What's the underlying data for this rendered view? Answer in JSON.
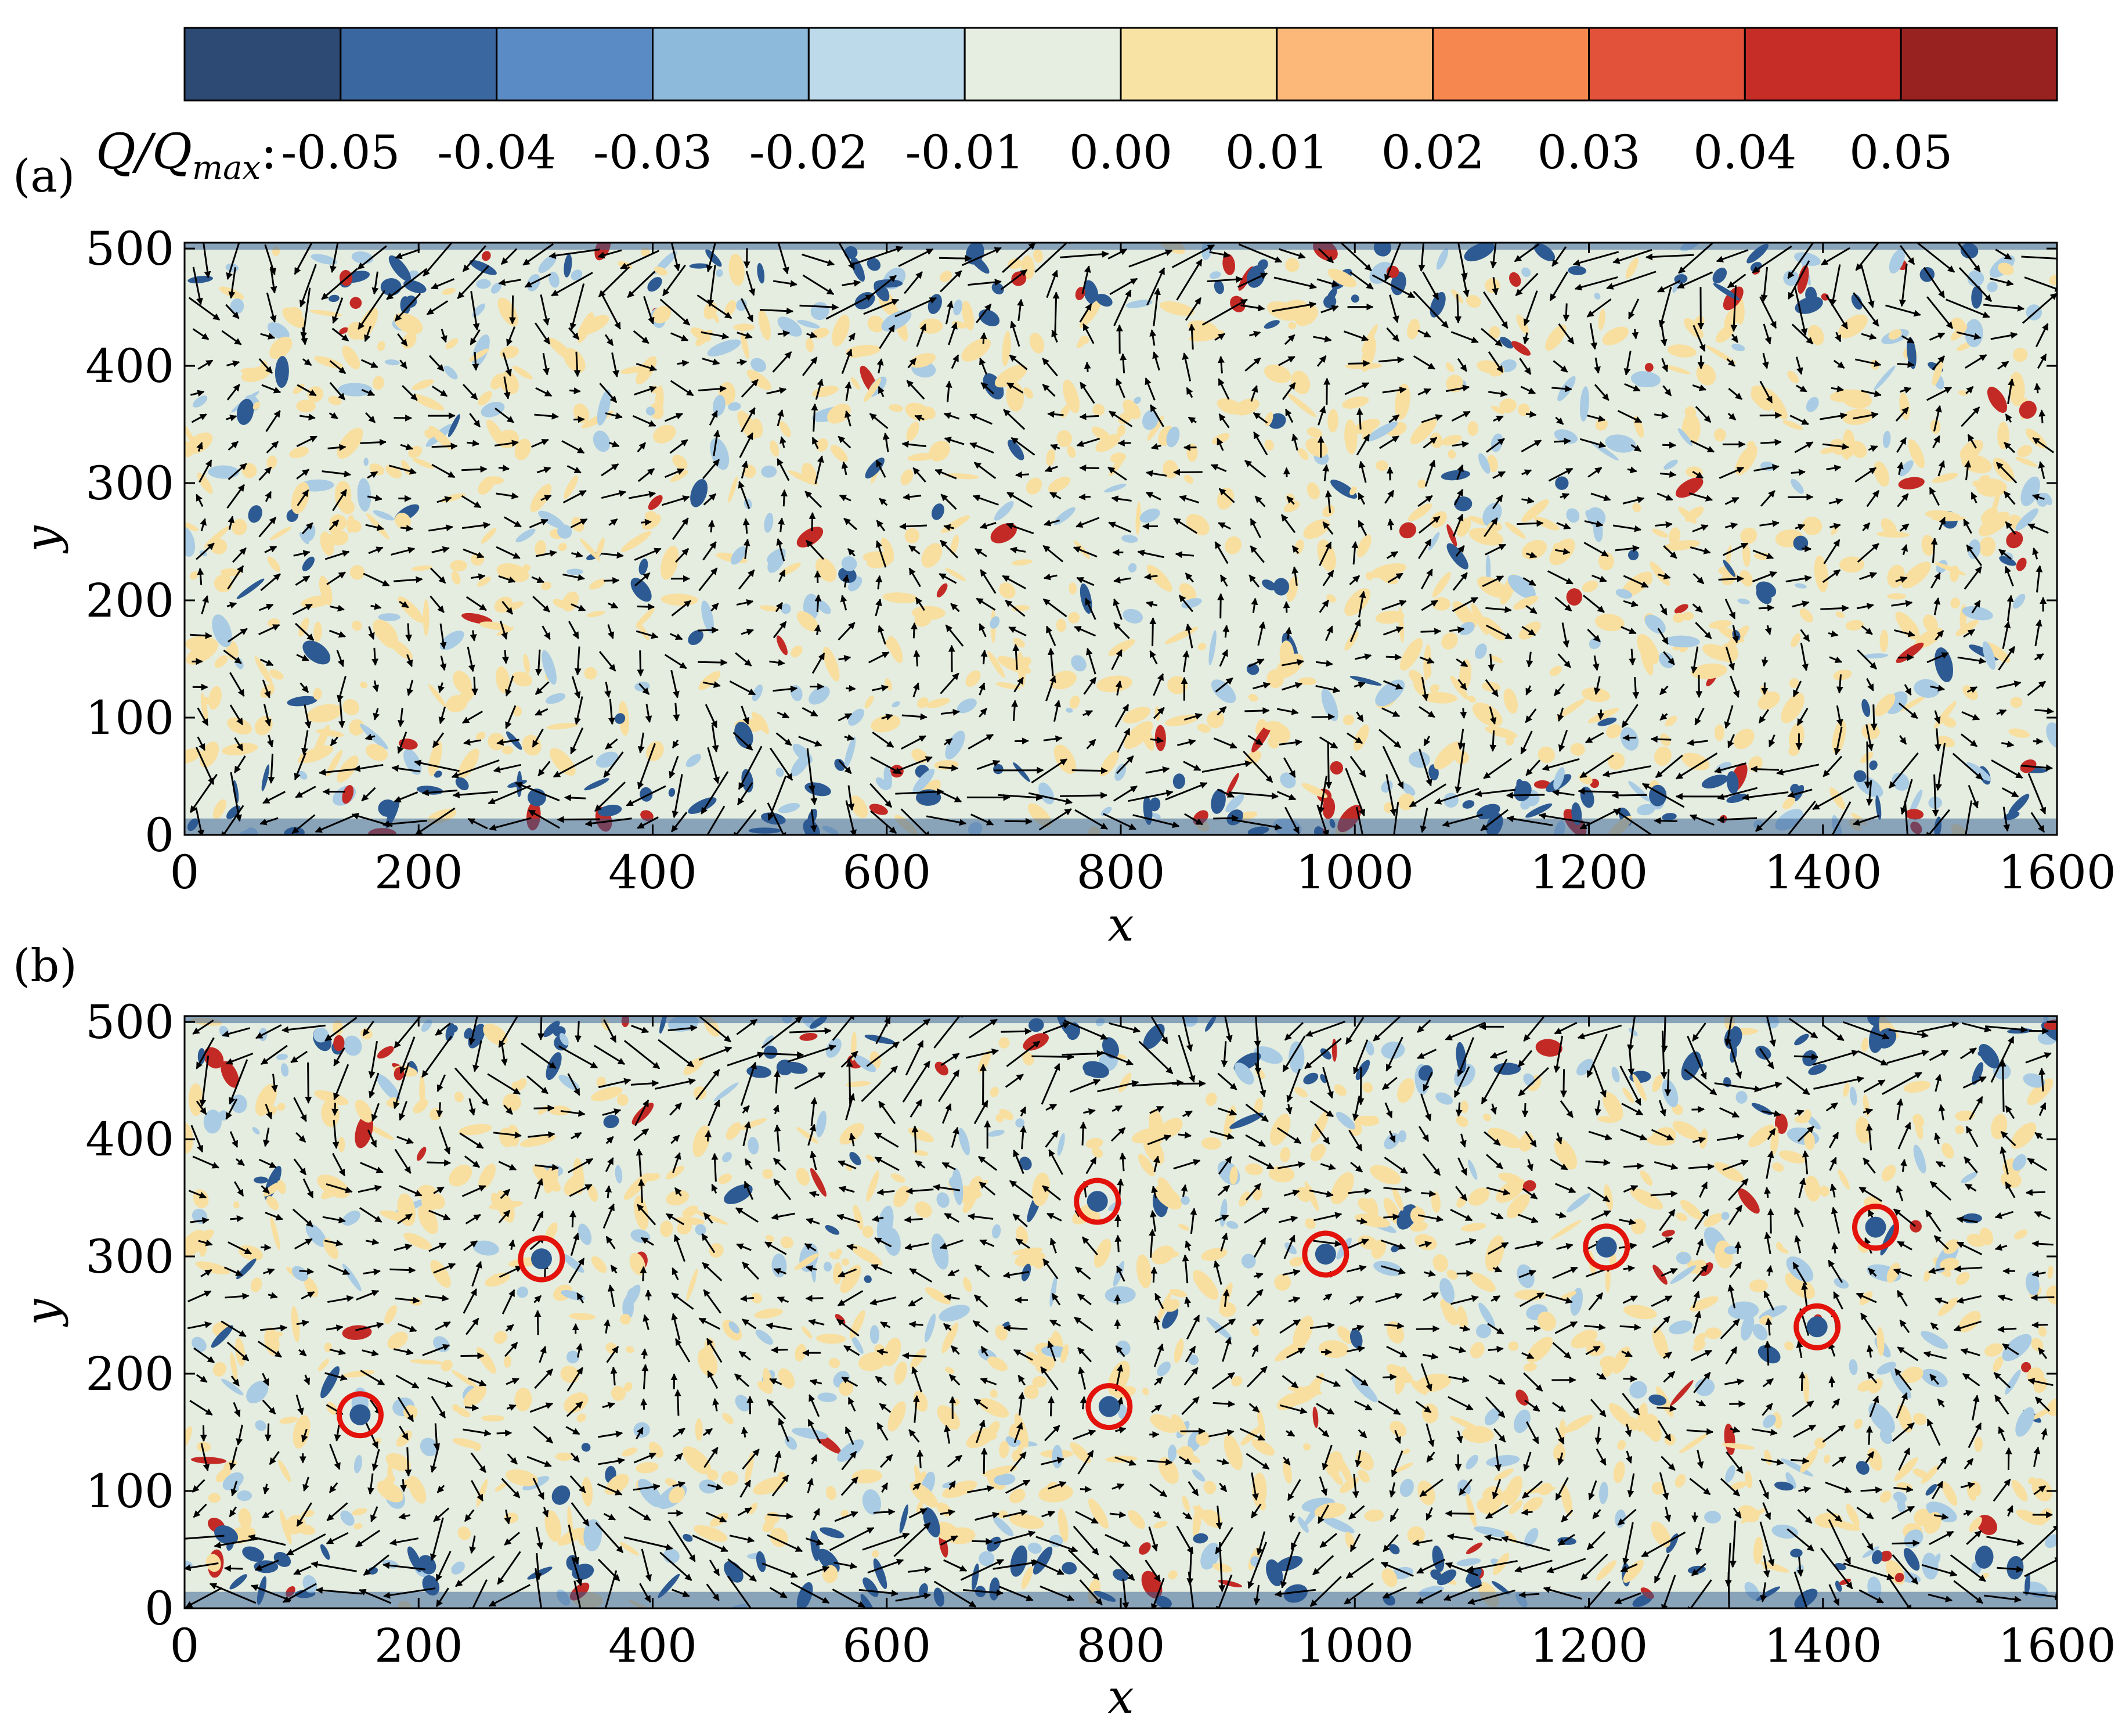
{
  "colorbar": {
    "label_main": "Q/Q",
    "label_sub": "max",
    "label_suffix": ":",
    "ticks": [
      "-0.05",
      "-0.04",
      "-0.03",
      "-0.02",
      "-0.01",
      "0.00",
      "0.01",
      "0.02",
      "0.03",
      "0.04",
      "0.05"
    ],
    "colors": [
      "#2c4a74",
      "#3b67a1",
      "#5b8bc4",
      "#8db9db",
      "#bcdaea",
      "#e6eee2",
      "#f8e2a4",
      "#fcb879",
      "#f6874f",
      "#e2513a",
      "#c52d26",
      "#98221f"
    ]
  },
  "colors": {
    "background_field": "#e4ede0",
    "positive_weak": "#f8dfa0",
    "positive_strong": "#c42a25",
    "negative_weak": "#a9cbe3",
    "negative_strong": "#2d5a92",
    "arrows": "#000000",
    "circles": "#e3120b"
  },
  "chart_data": [
    {
      "type": "heatmap",
      "panel_label": "(a)",
      "xlabel": "x",
      "ylabel": "y",
      "xlim": [
        0,
        1600
      ],
      "ylim": [
        0,
        505
      ],
      "xticks": [
        0,
        200,
        400,
        600,
        800,
        1000,
        1200,
        1400,
        1600
      ],
      "yticks": [
        0,
        100,
        200,
        300,
        400,
        500
      ],
      "overlay": "velocity vectors",
      "circled_vortices": []
    },
    {
      "type": "heatmap",
      "panel_label": "(b)",
      "xlabel": "x",
      "ylabel": "y",
      "xlim": [
        0,
        1600
      ],
      "ylim": [
        0,
        505
      ],
      "xticks": [
        0,
        200,
        400,
        600,
        800,
        1000,
        1200,
        1400,
        1600
      ],
      "yticks": [
        0,
        100,
        200,
        300,
        400,
        500
      ],
      "overlay": "velocity vectors",
      "circled_vortices": [
        {
          "x": 150,
          "y": 165
        },
        {
          "x": 305,
          "y": 298
        },
        {
          "x": 780,
          "y": 347
        },
        {
          "x": 790,
          "y": 172
        },
        {
          "x": 975,
          "y": 302
        },
        {
          "x": 1215,
          "y": 308
        },
        {
          "x": 1395,
          "y": 240
        },
        {
          "x": 1445,
          "y": 325
        }
      ]
    }
  ]
}
